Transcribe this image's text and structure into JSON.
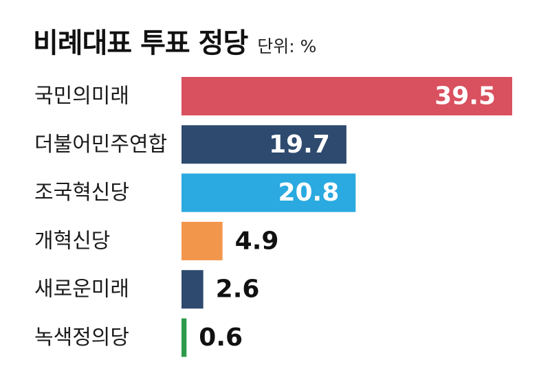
{
  "header": {
    "title": "비례대표 투표 정당",
    "unit": "단위: %"
  },
  "chart_data": {
    "type": "bar",
    "orientation": "horizontal",
    "title": "비례대표 투표 정당",
    "unit": "단위: %",
    "categories": [
      "국민의미래",
      "더불어민주연합",
      "조국혁신당",
      "개혁신당",
      "새로운미래",
      "녹색정의당"
    ],
    "values": [
      39.5,
      19.7,
      20.8,
      4.9,
      2.6,
      0.6
    ],
    "value_labels": [
      "39.5",
      "19.7",
      "20.8",
      "4.9",
      "2.6",
      "0.6"
    ],
    "colors": [
      "#d9505f",
      "#2e4a6e",
      "#2aaae0",
      "#f2964c",
      "#2e4a6e",
      "#2d9a4a"
    ],
    "xlim": [
      0,
      39.5
    ],
    "grid": false,
    "legend": "none"
  }
}
